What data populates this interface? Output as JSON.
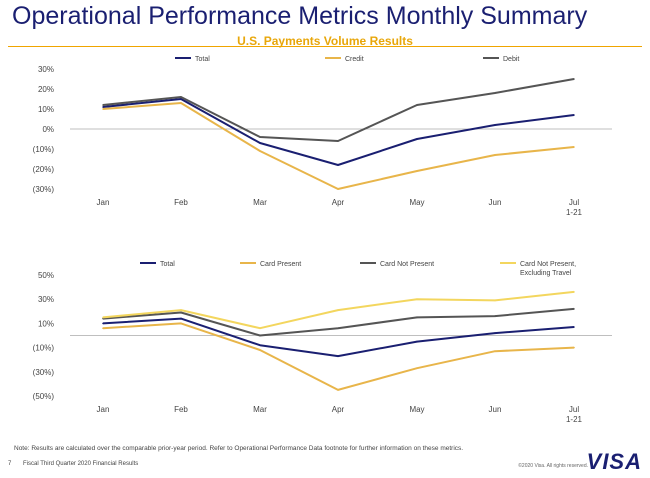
{
  "header": {
    "title": "Operational Performance Metrics Monthly Summary",
    "subtitle": "U.S. Payments Volume Results"
  },
  "footer": {
    "note": "Note: Results are calculated over the comparable prior-year period. Refer to Operational Performance Data footnote for further information on these metrics.",
    "page_number": "7",
    "doc_title": "Fiscal Third Quarter 2020 Financial Results",
    "copyright": "©2020 Visa. All rights reserved.",
    "logo_text": "VISA"
  },
  "colors": {
    "navy": "#1a1f71",
    "gold": "#e8b54a",
    "gray": "#555555",
    "light_yellow": "#f3d65e",
    "accent": "#f0a500"
  },
  "chart_data": [
    {
      "type": "line",
      "categories": [
        "Jan",
        "Feb",
        "Mar",
        "Apr",
        "May",
        "Jun",
        "Jul\n1-21"
      ],
      "y_tick_labels": [
        "30%",
        "20%",
        "10%",
        "0%",
        "(10%)",
        "(20%)",
        "(30%)"
      ],
      "ylim": [
        -30,
        30
      ],
      "y_ticks": [
        30,
        20,
        10,
        0,
        -10,
        -20,
        -30
      ],
      "legend_position": "top",
      "series": [
        {
          "name": "Total",
          "color": "#1a1f71",
          "values": [
            11,
            15,
            -7,
            -18,
            -5,
            2,
            7
          ]
        },
        {
          "name": "Credit",
          "color": "#e8b54a",
          "values": [
            10,
            13,
            -11,
            -30,
            -21,
            -13,
            -9
          ]
        },
        {
          "name": "Debit",
          "color": "#555555",
          "values": [
            12,
            16,
            -4,
            -6,
            12,
            18,
            25
          ]
        }
      ]
    },
    {
      "type": "line",
      "categories": [
        "Jan",
        "Feb",
        "Mar",
        "Apr",
        "May",
        "Jun",
        "Jul\n1-21"
      ],
      "y_tick_labels": [
        "50%",
        "30%",
        "10%",
        "(10%)",
        "(30%)",
        "(50%)"
      ],
      "ylim": [
        -50,
        50
      ],
      "y_ticks": [
        50,
        30,
        10,
        -10,
        -30,
        -50
      ],
      "legend_position": "top",
      "series": [
        {
          "name": "Total",
          "color": "#1a1f71",
          "values": [
            10,
            14,
            -8,
            -17,
            -5,
            2,
            7
          ]
        },
        {
          "name": "Card Present",
          "color": "#e8b54a",
          "values": [
            6,
            10,
            -12,
            -45,
            -27,
            -13,
            -10
          ]
        },
        {
          "name": "Card Not Present",
          "color": "#555555",
          "values": [
            14,
            19,
            0,
            6,
            15,
            16,
            22
          ]
        },
        {
          "name": "Card Not Present,\nExcluding Travel",
          "color": "#f3d65e",
          "values": [
            15,
            21,
            6,
            21,
            30,
            29,
            36
          ]
        }
      ]
    }
  ]
}
